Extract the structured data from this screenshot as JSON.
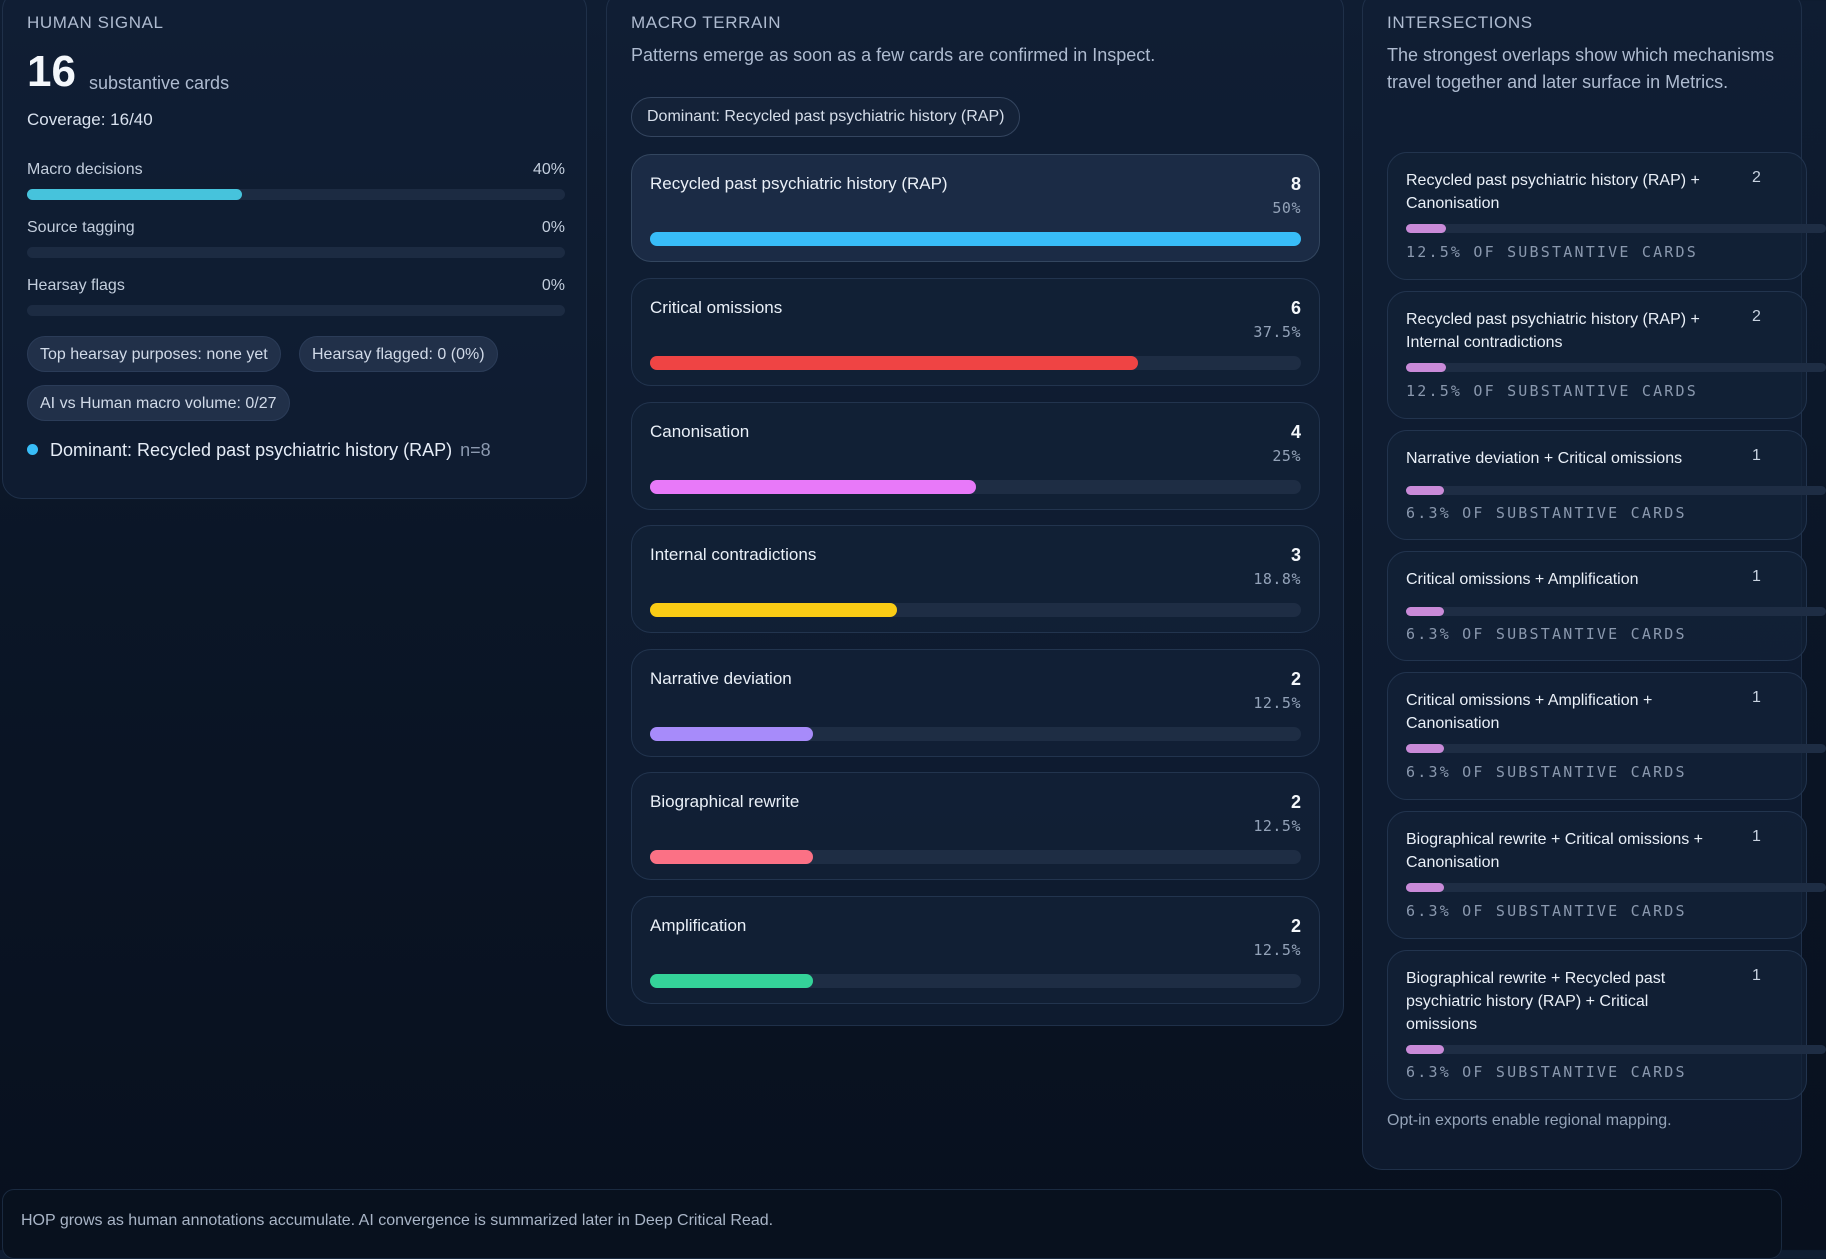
{
  "human_signal": {
    "title": "HUMAN SIGNAL",
    "count": "16",
    "count_label": "substantive cards",
    "coverage": "Coverage: 16/40",
    "metrics": [
      {
        "label": "Macro decisions",
        "value": "40%",
        "fraction": 0.4
      },
      {
        "label": "Source tagging",
        "value": "0%",
        "fraction": 0
      },
      {
        "label": "Hearsay flags",
        "value": "0%",
        "fraction": 0
      }
    ],
    "chips": [
      "Top hearsay purposes: none yet",
      "Hearsay flagged: 0 (0%)",
      "AI vs Human macro volume: 0/27"
    ],
    "dominant": {
      "label": "Dominant: Recycled past psychiatric history (RAP)",
      "n": "n=8",
      "color": "#38bdf8"
    }
  },
  "macro_terrain": {
    "title": "MACRO TERRAIN",
    "subtitle": "Patterns emerge as soon as a few cards are confirmed in Inspect.",
    "dominant_pill": "Dominant: Recycled past psychiatric history (RAP)",
    "rows": [
      {
        "label": "Recycled past psychiatric history (RAP)",
        "count": "8",
        "pct": "50%",
        "fraction": 1.0,
        "color": "#38bdf8"
      },
      {
        "label": "Critical omissions",
        "count": "6",
        "pct": "37.5%",
        "fraction": 0.75,
        "color": "#ef4444"
      },
      {
        "label": "Canonisation",
        "count": "4",
        "pct": "25%",
        "fraction": 0.5,
        "color": "#e879f9"
      },
      {
        "label": "Internal contradictions",
        "count": "3",
        "pct": "18.8%",
        "fraction": 0.38,
        "color": "#facc15"
      },
      {
        "label": "Narrative deviation",
        "count": "2",
        "pct": "12.5%",
        "fraction": 0.25,
        "color": "#a78bfa"
      },
      {
        "label": "Biographical rewrite",
        "count": "2",
        "pct": "12.5%",
        "fraction": 0.25,
        "color": "#fb7185"
      },
      {
        "label": "Amplification",
        "count": "2",
        "pct": "12.5%",
        "fraction": 0.25,
        "color": "#34d399"
      }
    ]
  },
  "intersections": {
    "title": "INTERSECTIONS",
    "subtitle": "The strongest overlaps show which mechanisms travel together and later surface in Metrics.",
    "rows": [
      {
        "label": "Recycled past psychiatric history (RAP) + Canonisation",
        "count": "2",
        "note": "12.5% OF SUBSTANTIVE CARDS",
        "fraction": 0.125
      },
      {
        "label": "Recycled past psychiatric history (RAP) + Internal contradictions",
        "count": "2",
        "note": "12.5% OF SUBSTANTIVE CARDS",
        "fraction": 0.125
      },
      {
        "label": "Narrative deviation + Critical omissions",
        "count": "1",
        "note": "6.3% OF SUBSTANTIVE CARDS",
        "fraction": 0.063
      },
      {
        "label": "Critical omissions + Amplification",
        "count": "1",
        "note": "6.3% OF SUBSTANTIVE CARDS",
        "fraction": 0.063
      },
      {
        "label": "Critical omissions + Amplification + Canonisation",
        "count": "1",
        "note": "6.3% OF SUBSTANTIVE CARDS",
        "fraction": 0.063
      },
      {
        "label": "Biographical rewrite + Critical omissions + Canonisation",
        "count": "1",
        "note": "6.3% OF SUBSTANTIVE CARDS",
        "fraction": 0.063
      },
      {
        "label": "Biographical rewrite + Recycled past psychiatric history (RAP) + Critical omissions",
        "count": "1",
        "note": "6.3% OF SUBSTANTIVE CARDS",
        "fraction": 0.063
      }
    ],
    "footer_note": "Opt-in exports enable regional mapping."
  },
  "footer": {
    "text": "HOP grows as human annotations accumulate. AI convergence is summarized later in Deep Critical Read."
  }
}
